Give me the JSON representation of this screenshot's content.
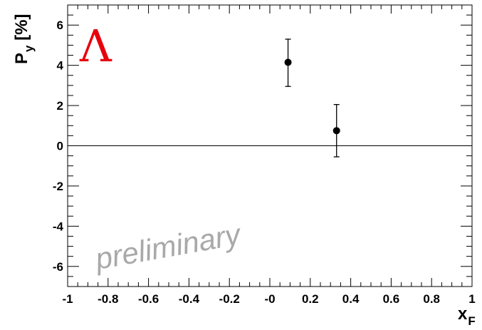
{
  "chart_data": {
    "type": "scatter",
    "title": "",
    "xlabel": {
      "main": "x",
      "sub": "F"
    },
    "ylabel": {
      "main": "P",
      "sub": "y",
      "suffix": " [%]"
    },
    "xlim": [
      -1,
      1
    ],
    "ylim": [
      -7,
      7
    ],
    "x_ticks": [
      -1,
      -0.8,
      -0.6,
      -0.4,
      -0.2,
      0,
      0.2,
      0.4,
      0.6,
      0.8,
      1
    ],
    "x_tick_labels": [
      "-1",
      "-0.8",
      "-0.6",
      "-0.4",
      "-0.2",
      "-0",
      "0.2",
      "0.4",
      "0.6",
      "0.8",
      "1"
    ],
    "y_ticks": [
      -6,
      -4,
      -2,
      0,
      2,
      4,
      6
    ],
    "y_tick_labels": [
      "-6",
      "-4",
      "-2",
      "0",
      "2",
      "4",
      "6"
    ],
    "reference_line_y": 0,
    "grid": false,
    "series": [
      {
        "points": [
          {
            "x": 0.09,
            "y": 4.15,
            "err_low": 1.2,
            "err_high": 1.15
          },
          {
            "x": 0.33,
            "y": 0.75,
            "err_low": 1.3,
            "err_high": 1.3
          }
        ]
      }
    ],
    "annotations": {
      "particle_symbol": "Λ",
      "watermark": "preliminary"
    },
    "colors": {
      "particle_symbol": "#e8000b",
      "watermark": "#a9a9a9",
      "markers": "#000000",
      "axes": "#000000"
    }
  }
}
